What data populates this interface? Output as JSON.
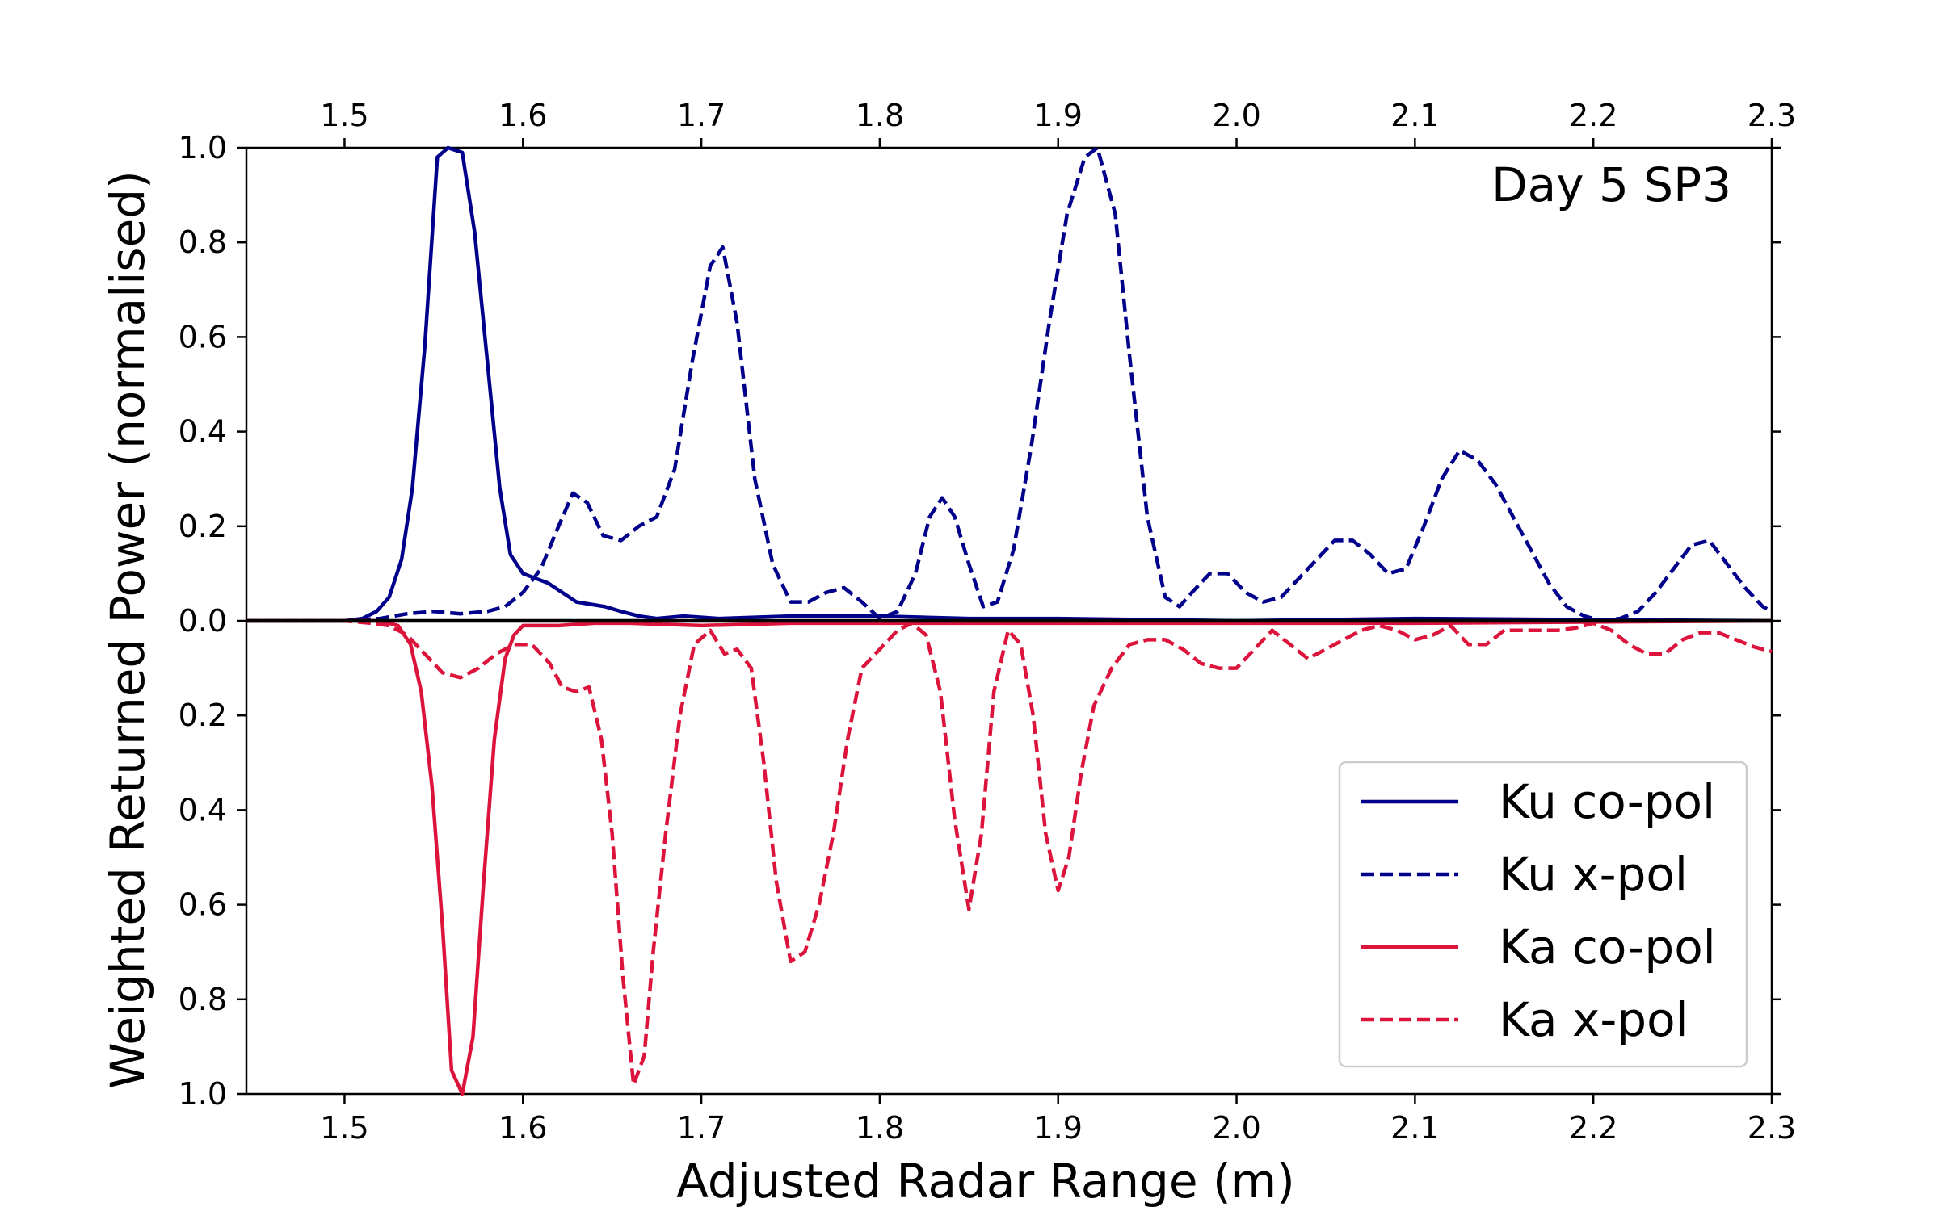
{
  "chart_data": {
    "type": "line",
    "xlabel": "Adjusted Radar Range (m)",
    "ylabel": "Weighted Returned Power (normalised)",
    "annotation": "Day 5 SP3",
    "xlim": [
      1.445,
      2.3
    ],
    "ylim": [
      -1.0,
      1.0
    ],
    "x_ticks": [
      "1.5",
      "1.6",
      "1.7",
      "1.8",
      "1.9",
      "2.0",
      "2.1",
      "2.2",
      "2.3"
    ],
    "x_tick_values": [
      1.5,
      1.6,
      1.7,
      1.8,
      1.9,
      2.0,
      2.1,
      2.2,
      2.3
    ],
    "y_ticks": [
      "1.0",
      "0.8",
      "0.6",
      "0.4",
      "0.2",
      "0.0",
      "0.2",
      "0.4",
      "0.6",
      "0.8",
      "1.0"
    ],
    "y_tick_values": [
      1.0,
      0.8,
      0.6,
      0.4,
      0.2,
      0.0,
      -0.2,
      -0.4,
      -0.6,
      -0.8,
      -1.0
    ],
    "legend_position": "lower-right",
    "zero_line": true,
    "grid": false,
    "series": [
      {
        "name": "Ku co-pol",
        "color": "#00008B",
        "dash": "solid",
        "x": [
          1.445,
          1.5,
          1.51,
          1.518,
          1.525,
          1.532,
          1.538,
          1.545,
          1.552,
          1.558,
          1.566,
          1.573,
          1.58,
          1.587,
          1.593,
          1.6,
          1.607,
          1.614,
          1.622,
          1.63,
          1.638,
          1.646,
          1.655,
          1.665,
          1.675,
          1.69,
          1.71,
          1.75,
          1.8,
          1.85,
          1.9,
          2.0,
          2.1,
          2.3
        ],
        "y": [
          0.0,
          0.0,
          0.005,
          0.02,
          0.05,
          0.13,
          0.28,
          0.58,
          0.98,
          1.0,
          0.99,
          0.82,
          0.55,
          0.28,
          0.14,
          0.1,
          0.09,
          0.08,
          0.06,
          0.04,
          0.035,
          0.03,
          0.02,
          0.01,
          0.005,
          0.01,
          0.005,
          0.01,
          0.01,
          0.005,
          0.005,
          0.0,
          0.005,
          0.0
        ]
      },
      {
        "name": "Ku x-pol",
        "color": "#00008B",
        "dash": "dashed",
        "x": [
          1.445,
          1.5,
          1.52,
          1.535,
          1.55,
          1.565,
          1.58,
          1.59,
          1.6,
          1.61,
          1.62,
          1.628,
          1.636,
          1.645,
          1.655,
          1.665,
          1.675,
          1.685,
          1.695,
          1.705,
          1.712,
          1.72,
          1.73,
          1.74,
          1.75,
          1.76,
          1.77,
          1.78,
          1.79,
          1.8,
          1.81,
          1.82,
          1.828,
          1.835,
          1.842,
          1.85,
          1.858,
          1.866,
          1.875,
          1.885,
          1.895,
          1.905,
          1.915,
          1.922,
          1.932,
          1.94,
          1.95,
          1.96,
          1.968,
          1.975,
          1.985,
          1.995,
          2.005,
          2.015,
          2.025,
          2.035,
          2.045,
          2.055,
          2.065,
          2.075,
          2.085,
          2.095,
          2.105,
          2.115,
          2.125,
          2.135,
          2.145,
          2.155,
          2.165,
          2.175,
          2.185,
          2.195,
          2.205,
          2.215,
          2.225,
          2.235,
          2.245,
          2.255,
          2.265,
          2.275,
          2.285,
          2.295,
          2.3
        ],
        "y": [
          0.0,
          0.0,
          0.005,
          0.015,
          0.02,
          0.015,
          0.02,
          0.03,
          0.06,
          0.11,
          0.2,
          0.27,
          0.25,
          0.18,
          0.17,
          0.2,
          0.22,
          0.32,
          0.55,
          0.75,
          0.79,
          0.63,
          0.3,
          0.12,
          0.04,
          0.04,
          0.06,
          0.07,
          0.04,
          0.005,
          0.02,
          0.1,
          0.22,
          0.26,
          0.22,
          0.12,
          0.03,
          0.04,
          0.15,
          0.37,
          0.63,
          0.86,
          0.98,
          1.0,
          0.86,
          0.56,
          0.22,
          0.05,
          0.03,
          0.06,
          0.1,
          0.1,
          0.06,
          0.04,
          0.05,
          0.09,
          0.13,
          0.17,
          0.17,
          0.14,
          0.1,
          0.11,
          0.2,
          0.3,
          0.36,
          0.34,
          0.29,
          0.22,
          0.15,
          0.08,
          0.03,
          0.01,
          0.0,
          0.005,
          0.02,
          0.06,
          0.11,
          0.16,
          0.17,
          0.12,
          0.07,
          0.03,
          0.02
        ]
      },
      {
        "name": "Ka co-pol",
        "color": "#DC143C",
        "dash": "solid",
        "x": [
          1.445,
          1.52,
          1.53,
          1.537,
          1.543,
          1.549,
          1.555,
          1.56,
          1.566,
          1.572,
          1.578,
          1.584,
          1.59,
          1.595,
          1.6,
          1.61,
          1.62,
          1.64,
          1.66,
          1.7,
          1.75,
          1.8,
          1.9,
          2.0,
          2.1,
          2.3
        ],
        "y": [
          0.0,
          0.0,
          -0.01,
          -0.05,
          -0.15,
          -0.35,
          -0.65,
          -0.95,
          -1.0,
          -0.88,
          -0.55,
          -0.25,
          -0.08,
          -0.03,
          -0.01,
          -0.01,
          -0.01,
          -0.005,
          -0.005,
          -0.01,
          -0.005,
          -0.005,
          -0.005,
          -0.005,
          -0.005,
          0.0
        ]
      },
      {
        "name": "Ka x-pol",
        "color": "#DC143C",
        "dash": "dashed",
        "x": [
          1.445,
          1.5,
          1.515,
          1.525,
          1.535,
          1.545,
          1.555,
          1.565,
          1.575,
          1.585,
          1.595,
          1.605,
          1.615,
          1.622,
          1.63,
          1.637,
          1.644,
          1.65,
          1.656,
          1.662,
          1.668,
          1.673,
          1.68,
          1.688,
          1.696,
          1.705,
          1.713,
          1.72,
          1.728,
          1.735,
          1.742,
          1.75,
          1.758,
          1.766,
          1.774,
          1.782,
          1.79,
          1.8,
          1.81,
          1.818,
          1.826,
          1.834,
          1.842,
          1.85,
          1.857,
          1.864,
          1.872,
          1.879,
          1.886,
          1.893,
          1.9,
          1.906,
          1.913,
          1.92,
          1.93,
          1.94,
          1.95,
          1.96,
          1.97,
          1.98,
          1.99,
          2.0,
          2.01,
          2.02,
          2.03,
          2.04,
          2.05,
          2.06,
          2.07,
          2.08,
          2.09,
          2.1,
          2.11,
          2.12,
          2.13,
          2.14,
          2.15,
          2.16,
          2.17,
          2.18,
          2.19,
          2.2,
          2.21,
          2.22,
          2.23,
          2.24,
          2.25,
          2.26,
          2.27,
          2.28,
          2.29,
          2.3
        ],
        "y": [
          0.0,
          0.0,
          -0.005,
          -0.01,
          -0.03,
          -0.07,
          -0.11,
          -0.12,
          -0.1,
          -0.07,
          -0.05,
          -0.05,
          -0.09,
          -0.14,
          -0.15,
          -0.14,
          -0.25,
          -0.45,
          -0.75,
          -0.98,
          -0.92,
          -0.7,
          -0.45,
          -0.2,
          -0.05,
          -0.02,
          -0.07,
          -0.06,
          -0.1,
          -0.3,
          -0.55,
          -0.72,
          -0.7,
          -0.6,
          -0.45,
          -0.25,
          -0.1,
          -0.06,
          -0.02,
          -0.005,
          -0.03,
          -0.15,
          -0.42,
          -0.61,
          -0.45,
          -0.15,
          -0.02,
          -0.05,
          -0.2,
          -0.45,
          -0.57,
          -0.5,
          -0.32,
          -0.18,
          -0.1,
          -0.05,
          -0.04,
          -0.04,
          -0.06,
          -0.09,
          -0.1,
          -0.1,
          -0.06,
          -0.02,
          -0.05,
          -0.08,
          -0.06,
          -0.04,
          -0.02,
          -0.01,
          -0.02,
          -0.04,
          -0.03,
          -0.01,
          -0.05,
          -0.05,
          -0.02,
          -0.02,
          -0.02,
          -0.02,
          -0.015,
          -0.005,
          -0.02,
          -0.05,
          -0.07,
          -0.07,
          -0.04,
          -0.025,
          -0.025,
          -0.04,
          -0.055,
          -0.065
        ]
      }
    ]
  }
}
